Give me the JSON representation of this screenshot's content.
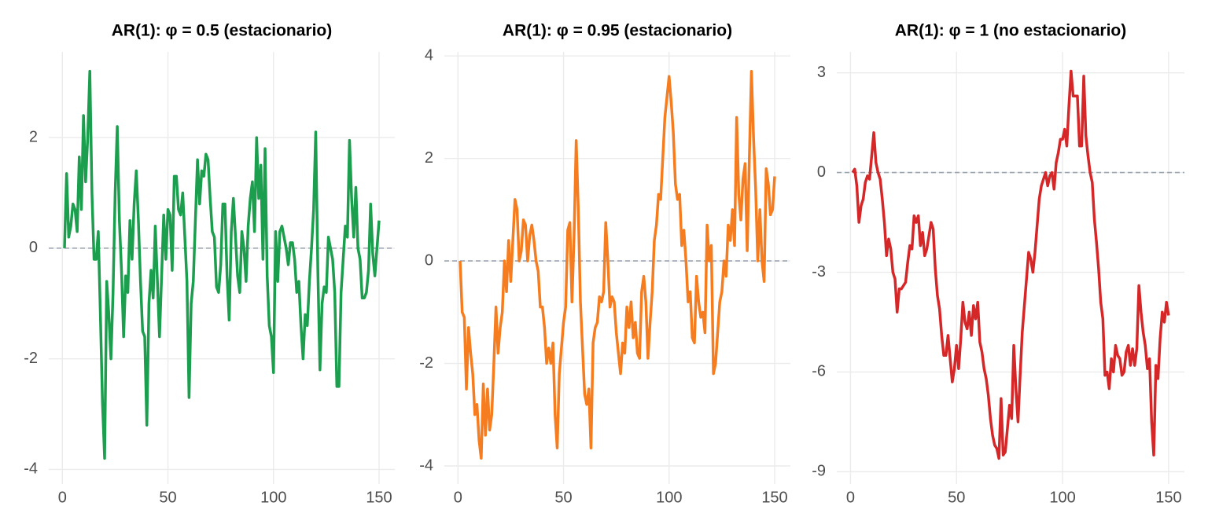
{
  "chart_data": [
    {
      "type": "line",
      "title": "AR(1): φ = 0.5 (estacionario)",
      "color": "#1b9e4d",
      "hline": 0,
      "xlim": [
        -6.45,
        157.45
      ],
      "xticks": [
        0,
        50,
        100,
        150
      ],
      "ylim": [
        -4.15,
        3.55
      ],
      "yticks": [
        -4,
        -2,
        0,
        2
      ],
      "grid": true,
      "x": [
        1,
        2,
        3,
        4,
        5,
        6,
        7,
        8,
        9,
        10,
        11,
        12,
        13,
        14,
        15,
        16,
        17,
        18,
        19,
        20,
        21,
        22,
        23,
        24,
        25,
        26,
        27,
        28,
        29,
        30,
        31,
        32,
        33,
        34,
        35,
        36,
        37,
        38,
        39,
        40,
        41,
        42,
        43,
        44,
        45,
        46,
        47,
        48,
        49,
        50,
        51,
        52,
        53,
        54,
        55,
        56,
        57,
        58,
        59,
        60,
        61,
        62,
        63,
        64,
        65,
        66,
        67,
        68,
        69,
        70,
        71,
        72,
        73,
        74,
        75,
        76,
        77,
        78,
        79,
        80,
        81,
        82,
        83,
        84,
        85,
        86,
        87,
        88,
        89,
        90,
        91,
        92,
        93,
        94,
        95,
        96,
        97,
        98,
        99,
        100,
        101,
        102,
        103,
        104,
        105,
        106,
        107,
        108,
        109,
        110,
        111,
        112,
        113,
        114,
        115,
        116,
        117,
        118,
        119,
        120,
        121,
        122,
        123,
        124,
        125,
        126,
        127,
        128,
        129,
        130,
        131,
        132,
        133,
        134,
        135,
        136,
        137,
        138,
        139,
        140,
        141,
        142,
        143,
        144,
        145,
        146,
        147,
        148,
        149,
        150
      ],
      "values": [
        0.0,
        1.35,
        0.2,
        0.4,
        0.8,
        0.7,
        0.3,
        1.65,
        0.7,
        2.4,
        1.2,
        2.0,
        3.2,
        1.0,
        -0.2,
        -0.2,
        0.3,
        -1.2,
        -2.8,
        -3.8,
        -0.6,
        -1.2,
        -2.0,
        -0.8,
        1.0,
        2.2,
        0.5,
        -0.4,
        -1.6,
        -0.5,
        -0.8,
        0.5,
        -0.2,
        0.8,
        1.4,
        0.5,
        -0.6,
        -1.5,
        -1.6,
        -3.2,
        -1.0,
        -0.4,
        -0.9,
        0.4,
        -0.6,
        -1.6,
        -0.5,
        0.6,
        -0.2,
        0.7,
        0.6,
        -0.4,
        1.3,
        1.3,
        0.7,
        0.6,
        1.0,
        0.2,
        -0.6,
        -2.7,
        -1.0,
        -0.6,
        0.5,
        1.6,
        0.8,
        1.4,
        1.3,
        1.7,
        1.6,
        0.9,
        0.3,
        0.2,
        -0.7,
        -0.8,
        -0.3,
        0.8,
        0.8,
        -0.5,
        -1.3,
        0.3,
        0.9,
        0.2,
        -0.5,
        -0.8,
        0.3,
        0.0,
        -0.6,
        0.4,
        0.9,
        1.2,
        0.3,
        2.0,
        0.9,
        1.5,
        -0.2,
        1.8,
        -0.5,
        -1.4,
        -1.6,
        -2.25,
        0.3,
        -0.6,
        0.3,
        0.4,
        0.2,
        0.0,
        -0.3,
        0.1,
        0.1,
        -0.2,
        -0.8,
        -0.6,
        -1.4,
        -2.0,
        -1.2,
        -1.4,
        -0.6,
        0.0,
        0.7,
        2.1,
        -0.4,
        -2.2,
        -1.0,
        -0.7,
        -0.8,
        0.2,
        0.0,
        -0.2,
        -0.8,
        -2.5,
        -2.5,
        -0.8,
        -0.2,
        0.4,
        0.2,
        1.95,
        0.9,
        0.2,
        1.1,
        0.0,
        -0.2,
        -0.9,
        -0.9,
        -0.8,
        -0.4,
        0.8,
        -0.1,
        -0.5,
        0.0,
        0.5
      ]
    },
    {
      "type": "line",
      "title": "AR(1): φ = 0.95 (estacionario)",
      "color": "#f57c1f",
      "hline": 0,
      "xlim": [
        -6.45,
        157.45
      ],
      "xticks": [
        0,
        50,
        100,
        150
      ],
      "ylim": [
        -4.23,
        4.08
      ],
      "yticks": [
        -4,
        -2,
        0,
        2,
        4
      ],
      "grid": true,
      "x": [
        1,
        2,
        3,
        4,
        5,
        6,
        7,
        8,
        9,
        10,
        11,
        12,
        13,
        14,
        15,
        16,
        17,
        18,
        19,
        20,
        21,
        22,
        23,
        24,
        25,
        26,
        27,
        28,
        29,
        30,
        31,
        32,
        33,
        34,
        35,
        36,
        37,
        38,
        39,
        40,
        41,
        42,
        43,
        44,
        45,
        46,
        47,
        48,
        49,
        50,
        51,
        52,
        53,
        54,
        55,
        56,
        57,
        58,
        59,
        60,
        61,
        62,
        63,
        64,
        65,
        66,
        67,
        68,
        69,
        70,
        71,
        72,
        73,
        74,
        75,
        76,
        77,
        78,
        79,
        80,
        81,
        82,
        83,
        84,
        85,
        86,
        87,
        88,
        89,
        90,
        91,
        92,
        93,
        94,
        95,
        96,
        97,
        98,
        99,
        100,
        101,
        102,
        103,
        104,
        105,
        106,
        107,
        108,
        109,
        110,
        111,
        112,
        113,
        114,
        115,
        116,
        117,
        118,
        119,
        120,
        121,
        122,
        123,
        124,
        125,
        126,
        127,
        128,
        129,
        130,
        131,
        132,
        133,
        134,
        135,
        136,
        137,
        138,
        139,
        140,
        141,
        142,
        143,
        144,
        145,
        146,
        147,
        148,
        149,
        150
      ],
      "values": [
        0.0,
        -1.0,
        -1.1,
        -2.5,
        -1.3,
        -1.8,
        -2.2,
        -3.0,
        -2.8,
        -3.5,
        -3.85,
        -2.4,
        -3.4,
        -2.5,
        -3.3,
        -3.0,
        -2.0,
        -0.9,
        -1.8,
        -1.3,
        -1.0,
        0.0,
        -0.6,
        0.4,
        -0.4,
        0.4,
        1.2,
        1.0,
        0.0,
        0.2,
        0.8,
        0.7,
        0.0,
        0.5,
        0.7,
        0.4,
        0.0,
        -0.2,
        -0.9,
        -0.9,
        -1.3,
        -2.0,
        -1.7,
        -2.0,
        -1.6,
        -3.0,
        -3.65,
        -2.2,
        -1.7,
        -1.2,
        -0.9,
        0.6,
        0.75,
        -0.8,
        0.5,
        2.35,
        1.0,
        -0.8,
        -1.7,
        -2.6,
        -2.8,
        -2.5,
        -3.65,
        -1.6,
        -1.3,
        -1.2,
        -0.7,
        -0.8,
        -0.6,
        0.75,
        0.0,
        -0.9,
        -0.7,
        -0.8,
        -1.4,
        -1.8,
        -2.2,
        -1.6,
        -1.8,
        -0.9,
        -1.3,
        -0.8,
        -1.5,
        -1.2,
        -1.8,
        -1.9,
        -0.6,
        -0.3,
        -0.8,
        -1.9,
        -1.2,
        -0.6,
        0.4,
        0.7,
        1.3,
        1.2,
        2.0,
        2.8,
        3.2,
        3.6,
        3.1,
        2.5,
        1.5,
        1.2,
        1.3,
        0.3,
        0.6,
        0.0,
        -0.8,
        -0.6,
        -1.5,
        -1.6,
        -0.3,
        -0.8,
        -1.1,
        -1.0,
        -1.4,
        0.7,
        0.0,
        0.3,
        -2.2,
        -2.0,
        -1.4,
        -0.8,
        -0.6,
        0.0,
        -0.3,
        0.7,
        0.4,
        1.0,
        0.3,
        2.8,
        1.3,
        0.8,
        1.6,
        1.9,
        0.2,
        2.0,
        3.7,
        2.4,
        1.4,
        0.0,
        1.0,
        0.0,
        -0.4,
        1.8,
        1.5,
        0.9,
        1.0,
        1.65
      ]
    },
    {
      "type": "line",
      "title": "AR(1): φ = 1 (no estacionario)",
      "color": "#d62728",
      "hline": 0,
      "xlim": [
        -6.45,
        157.45
      ],
      "xticks": [
        0,
        50,
        100,
        150
      ],
      "ylim": [
        -9.18,
        3.63
      ],
      "yticks": [
        -9,
        -6,
        -3,
        0,
        3
      ],
      "grid": true,
      "x": [
        1,
        2,
        3,
        4,
        5,
        6,
        7,
        8,
        9,
        10,
        11,
        12,
        13,
        14,
        15,
        16,
        17,
        18,
        19,
        20,
        21,
        22,
        23,
        24,
        25,
        26,
        27,
        28,
        29,
        30,
        31,
        32,
        33,
        34,
        35,
        36,
        37,
        38,
        39,
        40,
        41,
        42,
        43,
        44,
        45,
        46,
        47,
        48,
        49,
        50,
        51,
        52,
        53,
        54,
        55,
        56,
        57,
        58,
        59,
        60,
        61,
        62,
        63,
        64,
        65,
        66,
        67,
        68,
        69,
        70,
        71,
        72,
        73,
        74,
        75,
        76,
        77,
        78,
        79,
        80,
        81,
        82,
        83,
        84,
        85,
        86,
        87,
        88,
        89,
        90,
        91,
        92,
        93,
        94,
        95,
        96,
        97,
        98,
        99,
        100,
        101,
        102,
        103,
        104,
        105,
        106,
        107,
        108,
        109,
        110,
        111,
        112,
        113,
        114,
        115,
        116,
        117,
        118,
        119,
        120,
        121,
        122,
        123,
        124,
        125,
        126,
        127,
        128,
        129,
        130,
        131,
        132,
        133,
        134,
        135,
        136,
        137,
        138,
        139,
        140,
        141,
        142,
        143,
        144,
        145,
        146,
        147,
        148,
        149,
        150
      ],
      "values": [
        0.0,
        0.1,
        -0.4,
        -1.5,
        -1.0,
        -0.8,
        -0.3,
        -0.1,
        -0.2,
        0.5,
        1.2,
        0.3,
        0.0,
        -0.2,
        -0.8,
        -1.5,
        -2.5,
        -2.0,
        -2.3,
        -3.0,
        -3.2,
        -4.2,
        -3.5,
        -3.5,
        -3.4,
        -3.3,
        -2.7,
        -2.2,
        -2.3,
        -1.3,
        -1.5,
        -1.3,
        -2.2,
        -1.8,
        -2.5,
        -2.3,
        -1.9,
        -1.5,
        -1.7,
        -2.9,
        -3.7,
        -4.1,
        -4.9,
        -5.5,
        -5.5,
        -4.9,
        -5.6,
        -6.3,
        -5.9,
        -5.2,
        -5.9,
        -5.0,
        -3.9,
        -4.5,
        -4.7,
        -4.2,
        -4.9,
        -4.0,
        -4.4,
        -3.9,
        -5.1,
        -5.4,
        -5.9,
        -6.2,
        -6.7,
        -7.4,
        -7.9,
        -8.2,
        -8.3,
        -8.6,
        -6.8,
        -8.5,
        -8.4,
        -7.7,
        -7.0,
        -7.4,
        -5.2,
        -6.5,
        -7.5,
        -6.1,
        -4.8,
        -4.0,
        -3.2,
        -2.4,
        -2.6,
        -3.0,
        -2.4,
        -1.6,
        -0.8,
        -0.4,
        -0.2,
        0.0,
        -0.4,
        -0.1,
        0.0,
        -0.5,
        0.3,
        0.6,
        1.0,
        1.0,
        1.3,
        0.8,
        2.0,
        3.05,
        2.3,
        2.3,
        2.3,
        0.8,
        0.8,
        2.9,
        1.1,
        0.5,
        0.0,
        -0.3,
        -1.4,
        -2.1,
        -2.9,
        -3.9,
        -4.4,
        -6.1,
        -6.0,
        -6.5,
        -5.6,
        -6.0,
        -5.2,
        -5.5,
        -5.6,
        -6.1,
        -6.0,
        -5.4,
        -5.2,
        -5.8,
        -5.3,
        -5.8,
        -5.3,
        -3.4,
        -4.2,
        -4.8,
        -5.2,
        -5.9,
        -5.6,
        -7.5,
        -8.5,
        -5.8,
        -6.2,
        -5.0,
        -4.2,
        -4.5,
        -3.9,
        -4.3
      ]
    }
  ]
}
